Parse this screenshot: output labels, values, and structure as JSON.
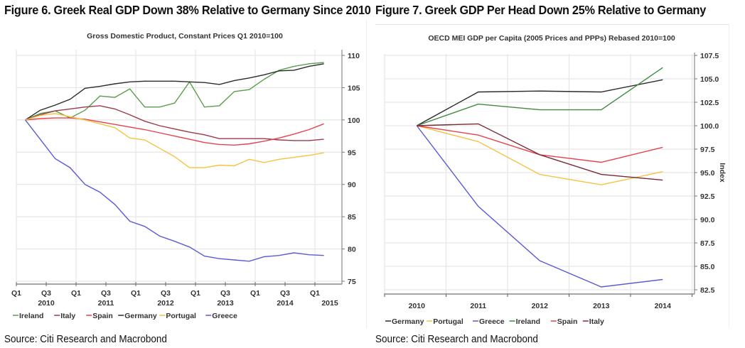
{
  "figure6": {
    "title": "Figure 6. Greek Real GDP Down 38% Relative to Germany Since 2010",
    "source": "Source: Citi Research and Macrobond"
  },
  "figure7": {
    "title": "Figure 7. Greek GDP Per Head Down 25% Relative to Germany",
    "source": "Source: Citi Research and Macrobond"
  },
  "chart_data": [
    {
      "type": "line",
      "title": "Gross Domestic Product, Constant Prices Q1 2010=100",
      "xlabel": "",
      "ylabel": "",
      "ylim": [
        75,
        110
      ],
      "yticks": [
        "110",
        "105",
        "100",
        "95",
        "90",
        "85",
        "80",
        "75"
      ],
      "ytick_values": [
        110,
        105,
        100,
        95,
        90,
        85,
        80,
        75
      ],
      "xtick_labels": [
        {
          "q": "Q1",
          "year": ""
        },
        {
          "q": "Q3",
          "year": "2010"
        },
        {
          "q": "Q1",
          "year": ""
        },
        {
          "q": "Q3",
          "year": "2011"
        },
        {
          "q": "Q1",
          "year": ""
        },
        {
          "q": "Q3",
          "year": "2012"
        },
        {
          "q": "Q1",
          "year": ""
        },
        {
          "q": "Q3",
          "year": "2013"
        },
        {
          "q": "Q1",
          "year": ""
        },
        {
          "q": "Q3",
          "year": "2014"
        },
        {
          "q": "Q1",
          "year": "2015"
        }
      ],
      "x_period_start": "2010 Q1",
      "x_period_end": "2015 Q1",
      "grid": true,
      "legend_position": "bottom-left",
      "series": [
        {
          "name": "Ireland",
          "color": "#5a9e4b",
          "values": [
            100,
            101.0,
            101.4,
            100.3,
            101.5,
            103.7,
            103.5,
            104.8,
            102.0,
            102.0,
            102.6,
            105.9,
            102.0,
            102.2,
            104.4,
            104.7,
            106.3,
            107.7,
            108.3,
            108.7,
            108.9
          ]
        },
        {
          "name": "Italy",
          "color": "#9b3b4a",
          "values": [
            100,
            100.8,
            101.4,
            101.7,
            102.0,
            102.2,
            101.7,
            100.8,
            99.8,
            99.1,
            98.6,
            98.1,
            97.7,
            97.1,
            97.1,
            97.1,
            97.1,
            96.9,
            96.8,
            96.8,
            97.0
          ]
        },
        {
          "name": "Spain",
          "color": "#e8414f",
          "values": [
            100,
            100.2,
            100.3,
            100.3,
            100.1,
            99.7,
            99.3,
            98.9,
            98.5,
            98.0,
            97.5,
            97.0,
            96.5,
            96.2,
            96.1,
            96.3,
            96.7,
            97.2,
            97.8,
            98.5,
            99.4
          ]
        },
        {
          "name": "Germany",
          "color": "#2b2b2b",
          "values": [
            100,
            101.5,
            102.3,
            103.2,
            104.9,
            105.2,
            105.6,
            105.9,
            106.0,
            106.0,
            106.0,
            105.9,
            105.8,
            105.5,
            106.1,
            106.5,
            107.0,
            107.6,
            107.7,
            108.3,
            108.7
          ]
        },
        {
          "name": "Portugal",
          "color": "#f5c242",
          "values": [
            100,
            100.7,
            101.0,
            100.5,
            100.0,
            99.4,
            98.8,
            97.2,
            96.9,
            95.6,
            94.3,
            92.6,
            92.6,
            93.0,
            92.9,
            93.9,
            93.4,
            93.9,
            94.2,
            94.5,
            94.9
          ]
        },
        {
          "name": "Greece",
          "color": "#5b5bd6",
          "values": [
            100,
            97.0,
            94.0,
            92.6,
            90.0,
            88.8,
            86.9,
            84.3,
            83.5,
            82.0,
            81.2,
            80.3,
            78.9,
            78.5,
            78.3,
            78.1,
            78.8,
            79.0,
            79.4,
            79.1,
            79.0
          ]
        }
      ]
    },
    {
      "type": "line",
      "title": "OECD MEI GDP per Capita (2005 Prices and PPPs) Rebased 2010=100",
      "xlabel": "",
      "ylabel": "Index",
      "ylim": [
        82.5,
        107.5
      ],
      "yticks": [
        "107.5",
        "105.0",
        "102.5",
        "100.0",
        "97.5",
        "95.0",
        "92.5",
        "90.0",
        "87.5",
        "85.0",
        "82.5"
      ],
      "ytick_values": [
        107.5,
        105.0,
        102.5,
        100.0,
        97.5,
        95.0,
        92.5,
        90.0,
        87.5,
        85.0,
        82.5
      ],
      "categories": [
        "2010",
        "2011",
        "2012",
        "2013",
        "2014"
      ],
      "grid": true,
      "legend_position": "bottom-left",
      "series": [
        {
          "name": "Germany",
          "color": "#2b2b2b",
          "values": [
            100,
            103.6,
            103.7,
            103.6,
            104.9
          ]
        },
        {
          "name": "Portugal",
          "color": "#f5c242",
          "values": [
            100,
            98.3,
            94.8,
            93.7,
            95.1
          ]
        },
        {
          "name": "Greece",
          "color": "#5b5bd6",
          "values": [
            100,
            91.4,
            85.6,
            82.8,
            83.6
          ]
        },
        {
          "name": "Ireland",
          "color": "#3f8a3f",
          "values": [
            100,
            102.3,
            101.7,
            101.7,
            106.2
          ]
        },
        {
          "name": "Spain",
          "color": "#e8414f",
          "values": [
            100,
            99.0,
            96.9,
            96.1,
            97.7
          ]
        },
        {
          "name": "Italy",
          "color": "#7a2a35",
          "values": [
            100,
            100.2,
            96.9,
            94.8,
            94.2
          ]
        }
      ]
    }
  ]
}
